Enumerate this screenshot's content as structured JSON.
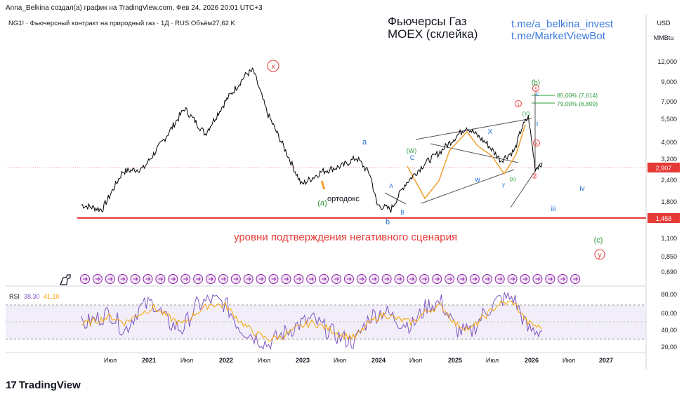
{
  "header": {
    "attribution": "Anna_Belkina создал(а) график на TradingView.com, Фев 24, 2026 20:01 UTC+3"
  },
  "symbol_line": "NG1! · Фьючерсный контракт на природный газ · 1Д · RUS  Объём27,62 K",
  "price_axis": {
    "currency": "USD",
    "unit": "MMBtu",
    "ticks": [
      "12,000",
      "9,000",
      "7,000",
      "5,500",
      "4,000",
      "3,200",
      "2,400",
      "1,800",
      "1,100",
      "0,850",
      "0,690"
    ],
    "current_price": "2,907",
    "level_price": "1,458"
  },
  "rsi_axis": {
    "ticks": [
      "80,00",
      "60,00",
      "40,00",
      "20,00"
    ]
  },
  "time_axis": {
    "labels": [
      "Июл",
      "2021",
      "Июл",
      "2022",
      "Июл",
      "2023",
      "Июл",
      "2024",
      "Июл",
      "2025",
      "Июл",
      "2026",
      "Июл",
      "2027"
    ]
  },
  "annotations": {
    "title_line1": "Фьючерсы Газ",
    "title_line2": "MOEX (склейка)",
    "link1": "t.me/a_belkina_invest",
    "link2": "t.me/MarketViewBot",
    "negative_scenario": "уровни подтверждения негативного сценария",
    "orthodox": "ортодокс",
    "fib_85": "85,00% (7,614)",
    "fib_79": "79,00% (6,809)",
    "wave_x_top": "x",
    "wave_a_green": "(a)",
    "wave_a_blue": "a",
    "wave_b_blue": "b",
    "wave_A": "A",
    "wave_B": "B",
    "wave_C": "C",
    "wave_W": "(W)",
    "wave_X": "X",
    "wave_w": "w",
    "wave_x": "x",
    "wave_y": "y",
    "wave_xx": "(x)",
    "wave_Y": "(Y)",
    "wave_b_green": "(b)",
    "wave_c_blue": "c",
    "wave_i": "i",
    "wave_ii": "②",
    "wave_iii": "iii",
    "wave_iv": "iv",
    "wave_c_green": "(c)",
    "wave_y_red": "y",
    "wave_1": "1",
    "wave_4": "4",
    "wave_5": "5"
  },
  "footer": {
    "brand": "TradingView",
    "mark": "17"
  },
  "colors": {
    "price_line": "#000000",
    "rsi": "#7e57c2",
    "rsi_ma": "#f7a600",
    "level_red": "#e53935",
    "wave_blue": "#1e6fd9",
    "wave_green": "#2e9b3c",
    "wave_red": "#e53935",
    "channel_gray": "#555555",
    "orange": "#f0a030",
    "link_blue": "#3d7be0"
  },
  "chart_data": [
    {
      "type": "line",
      "title": "",
      "ylabel": "",
      "scale": "log",
      "ylim": [
        0.65,
        13.5
      ],
      "x": [
        "2020-07",
        "2020-10",
        "2021-01",
        "2021-04",
        "2021-07",
        "2021-10",
        "2022-01",
        "2022-04",
        "2022-07",
        "2022-08",
        "2022-10",
        "2023-01",
        "2023-03",
        "2023-06",
        "2023-09",
        "2023-11",
        "2024-01",
        "2024-02",
        "2024-04",
        "2024-06",
        "2024-09",
        "2024-11",
        "2025-01",
        "2025-03",
        "2025-06",
        "2025-08",
        "2025-10",
        "2025-11",
        "2025-12",
        "2026-01",
        "2026-02"
      ],
      "series": [
        {
          "values": [
            1.7,
            1.6,
            2.6,
            2.7,
            3.9,
            5.8,
            4.2,
            6.4,
            9.0,
            9.4,
            5.5,
            3.2,
            2.2,
            2.6,
            2.8,
            3.1,
            2.5,
            1.7,
            1.6,
            2.2,
            2.9,
            3.3,
            3.9,
            4.6,
            3.7,
            3.0,
            3.4,
            4.5,
            5.2,
            2.7,
            2.907
          ]
        }
      ],
      "hlines": [
        1.458,
        2.907
      ],
      "fib_levels": [
        {
          "label": "85,00%",
          "value": 7.614
        },
        {
          "label": "79,00%",
          "value": 6.809
        }
      ]
    },
    {
      "type": "line",
      "title": "RSI",
      "ylim": [
        15,
        88
      ],
      "series": [
        {
          "name": "RSI",
          "values": [
            45,
            52,
            60,
            38,
            65,
            72,
            48,
            40,
            68,
            75,
            70,
            42,
            32,
            22,
            35,
            45,
            52,
            40,
            30,
            25,
            55,
            62,
            50,
            45,
            68,
            72,
            40,
            35,
            60,
            75,
            78,
            40,
            38.3
          ]
        },
        {
          "name": "MA",
          "values": [
            46,
            50,
            55,
            48,
            58,
            66,
            55,
            46,
            60,
            70,
            68,
            50,
            36,
            28,
            32,
            42,
            48,
            42,
            34,
            30,
            48,
            58,
            52,
            48,
            62,
            68,
            46,
            40,
            55,
            70,
            72,
            48,
            41.1
          ]
        }
      ],
      "legend_values": {
        "rsi": "38,30",
        "ma": "41,10"
      },
      "bands": [
        30,
        70
      ]
    }
  ]
}
